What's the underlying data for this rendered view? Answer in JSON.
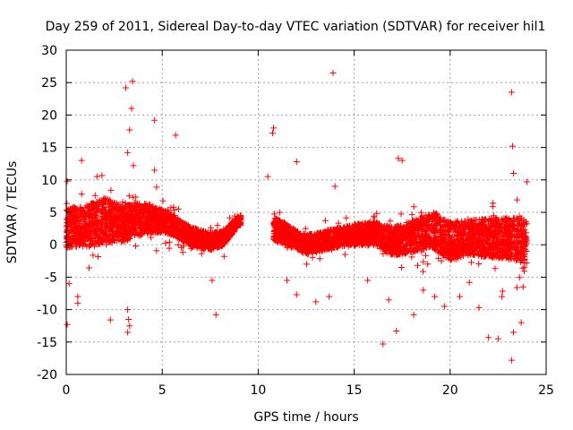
{
  "chart_data": {
    "type": "scatter",
    "title": "Day 259 of 2011, Sidereal Day-to-day VTEC variation (SDTVAR) for receiver hil1",
    "xlabel": "GPS time / hours",
    "ylabel": "SDTVAR / TECUs",
    "xlim": [
      0,
      25
    ],
    "ylim": [
      -20,
      30
    ],
    "xticks": [
      0,
      5,
      10,
      15,
      20,
      25
    ],
    "yticks": [
      -20,
      -15,
      -10,
      -5,
      0,
      5,
      10,
      15,
      20,
      25,
      30
    ],
    "grid": true,
    "marker": "+",
    "color": "#ff0000",
    "series": [
      {
        "name": "SDTVAR",
        "segments": [
          {
            "x_start": 0.0,
            "x_end": 9.1,
            "centerline": [
              [
                0.0,
                2.5
              ],
              [
                1.0,
                2.8
              ],
              [
                2.0,
                3.8
              ],
              [
                3.0,
                3.2
              ],
              [
                3.5,
                3.8
              ],
              [
                4.5,
                4.0
              ],
              [
                5.5,
                3.2
              ],
              [
                6.5,
                1.2
              ],
              [
                7.5,
                0.5
              ],
              [
                8.2,
                1.0
              ],
              [
                9.0,
                3.8
              ]
            ],
            "halfwidth": [
              [
                0.0,
                3.0
              ],
              [
                1.0,
                3.2
              ],
              [
                2.0,
                3.5
              ],
              [
                3.0,
                2.8
              ],
              [
                4.0,
                2.5
              ],
              [
                5.0,
                1.8
              ],
              [
                6.0,
                1.5
              ],
              [
                7.0,
                1.5
              ],
              [
                8.0,
                1.2
              ],
              [
                9.0,
                0.8
              ]
            ]
          },
          {
            "x_start": 10.8,
            "x_end": 24.0,
            "centerline": [
              [
                10.8,
                2.5
              ],
              [
                11.5,
                1.5
              ],
              [
                12.5,
                0.0
              ],
              [
                14.0,
                1.0
              ],
              [
                15.0,
                1.5
              ],
              [
                16.0,
                1.8
              ],
              [
                17.0,
                0.5
              ],
              [
                18.0,
                1.2
              ],
              [
                19.0,
                2.5
              ],
              [
                20.0,
                0.5
              ],
              [
                21.0,
                1.2
              ],
              [
                22.0,
                1.0
              ],
              [
                23.0,
                1.0
              ],
              [
                24.0,
                0.5
              ]
            ],
            "halfwidth": [
              [
                10.8,
                1.8
              ],
              [
                12.0,
                1.5
              ],
              [
                14.0,
                1.5
              ],
              [
                16.0,
                1.8
              ],
              [
                17.0,
                2.2
              ],
              [
                18.0,
                2.5
              ],
              [
                19.0,
                2.8
              ],
              [
                20.0,
                3.0
              ],
              [
                21.0,
                2.8
              ],
              [
                22.0,
                3.0
              ],
              [
                23.0,
                3.2
              ],
              [
                24.0,
                3.5
              ]
            ]
          }
        ],
        "outliers": [
          [
            13.9,
            26.5
          ],
          [
            3.45,
            25.2
          ],
          [
            3.1,
            24.2
          ],
          [
            23.2,
            23.5
          ],
          [
            3.4,
            21.0
          ],
          [
            4.6,
            19.2
          ],
          [
            3.3,
            17.7
          ],
          [
            10.8,
            18.0
          ],
          [
            10.75,
            17.2
          ],
          [
            5.7,
            16.9
          ],
          [
            23.25,
            15.2
          ],
          [
            3.2,
            14.2
          ],
          [
            17.3,
            13.3
          ],
          [
            17.5,
            13.0
          ],
          [
            0.8,
            13.0
          ],
          [
            12.0,
            12.8
          ],
          [
            3.5,
            12.2
          ],
          [
            4.6,
            11.5
          ],
          [
            23.3,
            11.0
          ],
          [
            1.6,
            10.5
          ],
          [
            10.5,
            10.5
          ],
          [
            24.0,
            9.7
          ],
          [
            0.05,
            9.8
          ],
          [
            14.0,
            9.0
          ],
          [
            0.15,
            -6.0
          ],
          [
            0.6,
            -8.0
          ],
          [
            0.6,
            -9.0
          ],
          [
            0.05,
            -12.3
          ],
          [
            2.3,
            -11.6
          ],
          [
            3.2,
            -10.0
          ],
          [
            3.25,
            -11.5
          ],
          [
            3.2,
            -13.5
          ],
          [
            3.3,
            -12.5
          ],
          [
            7.8,
            -10.8
          ],
          [
            7.6,
            -5.5
          ],
          [
            12.0,
            -7.7
          ],
          [
            13.0,
            -8.8
          ],
          [
            16.5,
            -15.3
          ],
          [
            17.2,
            -13.3
          ],
          [
            18.1,
            -10.8
          ],
          [
            19.2,
            -8.0
          ],
          [
            19.7,
            -9.5
          ],
          [
            20.5,
            -8.0
          ],
          [
            21.5,
            -9.7
          ],
          [
            22.0,
            -14.3
          ],
          [
            22.5,
            -14.5
          ],
          [
            23.2,
            -17.8
          ],
          [
            23.3,
            -13.5
          ],
          [
            23.7,
            -12.0
          ],
          [
            23.8,
            -6.5
          ],
          [
            22.7,
            -8.0
          ],
          [
            13.7,
            -8.0
          ],
          [
            11.5,
            -5.5
          ],
          [
            15.7,
            -5.5
          ],
          [
            16.8,
            -8.5
          ],
          [
            18.6,
            -7.0
          ],
          [
            21.0,
            -5.8
          ]
        ]
      }
    ]
  }
}
